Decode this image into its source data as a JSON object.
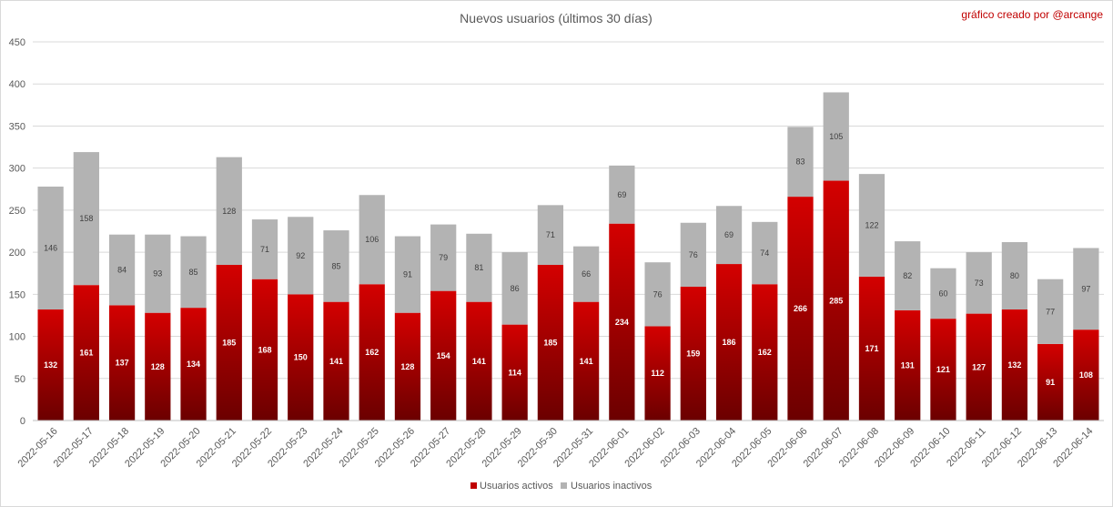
{
  "chart_data": {
    "type": "bar",
    "stacked": true,
    "title": "Nuevos usuarios (últimos 30 días)",
    "credit": "gráfico creado por @arcange",
    "xlabel": "",
    "ylabel": "",
    "ylim": [
      0,
      450
    ],
    "yticks": [
      0,
      50,
      100,
      150,
      200,
      250,
      300,
      350,
      400,
      450
    ],
    "grid": true,
    "legend_position": "bottom",
    "categories": [
      "2022-05-16",
      "2022-05-17",
      "2022-05-18",
      "2022-05-19",
      "2022-05-20",
      "2022-05-21",
      "2022-05-22",
      "2022-05-23",
      "2022-05-24",
      "2022-05-25",
      "2022-05-26",
      "2022-05-27",
      "2022-05-28",
      "2022-05-29",
      "2022-05-30",
      "2022-05-31",
      "2022-06-01",
      "2022-06-02",
      "2022-06-03",
      "2022-06-04",
      "2022-06-05",
      "2022-06-06",
      "2022-06-07",
      "2022-06-08",
      "2022-06-09",
      "2022-06-10",
      "2022-06-11",
      "2022-06-12",
      "2022-06-13",
      "2022-06-14"
    ],
    "series": [
      {
        "name": "Usuarios activos",
        "color": "#c00000",
        "values": [
          132,
          161,
          137,
          128,
          134,
          185,
          168,
          150,
          141,
          162,
          128,
          154,
          141,
          114,
          185,
          141,
          234,
          112,
          159,
          186,
          162,
          266,
          285,
          171,
          131,
          121,
          127,
          132,
          91,
          108
        ]
      },
      {
        "name": "Usuarios inactivos",
        "color": "#b3b3b3",
        "values": [
          146,
          158,
          84,
          93,
          85,
          128,
          71,
          92,
          85,
          106,
          91,
          79,
          81,
          86,
          71,
          66,
          69,
          76,
          76,
          69,
          74,
          83,
          105,
          122,
          82,
          60,
          73,
          80,
          77,
          97
        ]
      }
    ]
  }
}
